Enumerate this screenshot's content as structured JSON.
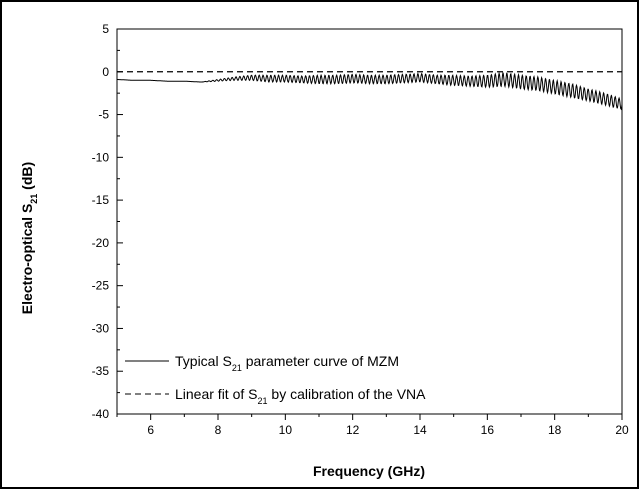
{
  "chart_data": {
    "type": "line",
    "xlabel": "Frequency (GHz)",
    "ylabel": {
      "prefix": "Electro-optical S",
      "sub": "21",
      "suffix": " (dB)"
    },
    "xlim": [
      5,
      20
    ],
    "ylim": [
      -40,
      5
    ],
    "x_ticks": [
      6,
      8,
      10,
      12,
      14,
      16,
      18,
      20
    ],
    "y_ticks": [
      5,
      0,
      -5,
      -10,
      -15,
      -20,
      -25,
      -30,
      -35,
      -40
    ],
    "grid": false,
    "legend_position": "bottom-left",
    "series": [
      {
        "name": "Typical S21 parameter curve of MZM",
        "legend": {
          "prefix": "Typical S",
          "sub": "21",
          "suffix": " parameter curve of MZM"
        },
        "style": "solid",
        "color": "#000000",
        "x": [
          5.0,
          5.5,
          6.0,
          6.5,
          7.0,
          7.5,
          8.0,
          8.5,
          9.0,
          9.5,
          10.0,
          10.5,
          11.0,
          11.5,
          12.0,
          12.5,
          13.0,
          13.5,
          14.0,
          14.5,
          15.0,
          15.5,
          16.0,
          16.5,
          17.0,
          17.5,
          18.0,
          18.5,
          19.0,
          19.5,
          20.0
        ],
        "y": [
          -0.9,
          -1.0,
          -1.0,
          -1.1,
          -1.1,
          -1.2,
          -1.0,
          -0.8,
          -0.7,
          -0.8,
          -0.8,
          -0.9,
          -0.9,
          -0.9,
          -0.8,
          -0.9,
          -0.9,
          -0.8,
          -0.7,
          -0.9,
          -1.0,
          -1.1,
          -1.1,
          -0.9,
          -1.2,
          -1.4,
          -1.8,
          -2.2,
          -2.7,
          -3.2,
          -3.8
        ],
        "ripple_amplitude": [
          0.0,
          0.0,
          0.0,
          0.0,
          0.0,
          0.0,
          0.1,
          0.2,
          0.3,
          0.4,
          0.4,
          0.4,
          0.5,
          0.5,
          0.5,
          0.5,
          0.5,
          0.5,
          0.5,
          0.5,
          0.6,
          0.6,
          0.7,
          0.8,
          0.8,
          0.8,
          0.8,
          0.8,
          0.7,
          0.7,
          0.6
        ]
      },
      {
        "name": "Linear fit of S21 by calibration of the VNA",
        "legend": {
          "prefix": "Linear fit of S",
          "sub": "21",
          "suffix": " by calibration of the VNA"
        },
        "style": "dashed",
        "color": "#000000",
        "x": [
          5,
          20
        ],
        "y": [
          0,
          0
        ]
      }
    ]
  }
}
